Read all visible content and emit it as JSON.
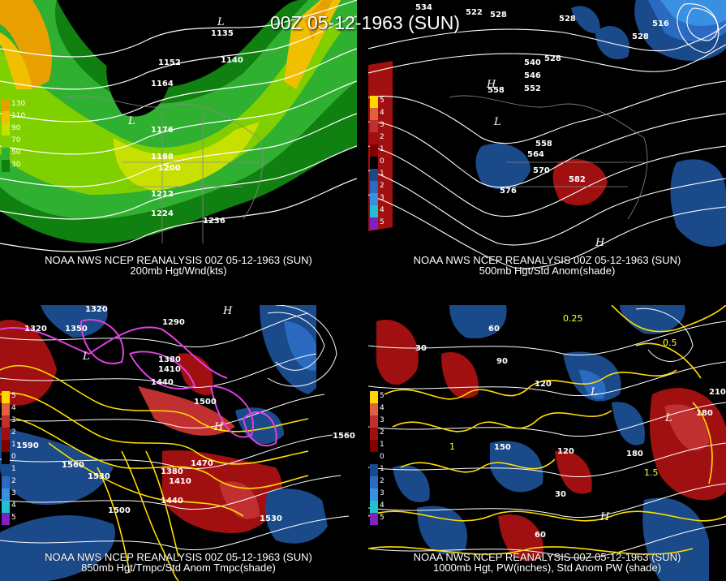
{
  "header": {
    "title": "00Z 05-12-1963 (SUN)"
  },
  "panels": [
    {
      "id": "p200",
      "line1": "NOAA NWS NCEP REANALYSIS 00Z 05-12-1963 (SUN)",
      "line2": "200mb Hgt/Wnd(kts)",
      "legend": [
        {
          "label": "130",
          "color": "#e8a000"
        },
        {
          "label": "110",
          "color": "#f0c000"
        },
        {
          "label": "90",
          "color": "#c8e000"
        },
        {
          "label": "70",
          "color": "#80d000"
        },
        {
          "label": "50",
          "color": "#30b030"
        },
        {
          "label": "30",
          "color": "#108010"
        }
      ],
      "labels": [
        "1135",
        "1152",
        "1140",
        "1164",
        "1176",
        "1188",
        "1200",
        "1212",
        "1224",
        "1236"
      ],
      "lows": [
        "L",
        "L"
      ]
    },
    {
      "id": "p500",
      "line1": "NOAA NWS NCEP REANALYSIS 00Z 05-12-1963 (SUN)",
      "line2": "500mb Hgt/Std Anom(shade)",
      "legend": [
        {
          "label": "5",
          "color": "#ffd700"
        },
        {
          "label": "4",
          "color": "#e06040"
        },
        {
          "label": "3",
          "color": "#c03030"
        },
        {
          "label": "2",
          "color": "#a01010"
        },
        {
          "label": "1",
          "color": "#800000"
        },
        {
          "label": "0",
          "color": "#000000"
        },
        {
          "label": "1",
          "color": "#1a4a8a"
        },
        {
          "label": "2",
          "color": "#2a6ac0"
        },
        {
          "label": "3",
          "color": "#3a90e0"
        },
        {
          "label": "4",
          "color": "#20c0d0"
        },
        {
          "label": "5",
          "color": "#8020c0"
        }
      ],
      "labels": [
        "534",
        "522",
        "528",
        "528",
        "516",
        "528",
        "540",
        "528",
        "546",
        "552",
        "558",
        "558",
        "564",
        "570",
        "576",
        "582"
      ],
      "lows": [
        "L",
        "H",
        "H"
      ]
    },
    {
      "id": "p850",
      "line1": "NOAA NWS NCEP REANALYSIS 00Z 05-12-1963 (SUN)",
      "line2": "850mb Hgt/Tmpc/Std Anom Tmpc(shade)",
      "legend": [
        {
          "label": "5",
          "color": "#ffd700"
        },
        {
          "label": "4",
          "color": "#e06040"
        },
        {
          "label": "3",
          "color": "#c03030"
        },
        {
          "label": "2",
          "color": "#a01010"
        },
        {
          "label": "1",
          "color": "#800000"
        },
        {
          "label": "0",
          "color": "#000000"
        },
        {
          "label": "1",
          "color": "#1a4a8a"
        },
        {
          "label": "2",
          "color": "#2a6ac0"
        },
        {
          "label": "3",
          "color": "#3a90e0"
        },
        {
          "label": "4",
          "color": "#20c0d0"
        },
        {
          "label": "5",
          "color": "#8020c0"
        }
      ],
      "labels": [
        "1320",
        "1350",
        "1290",
        "1380",
        "1410",
        "1440",
        "1500",
        "1590",
        "1560",
        "1530",
        "1500",
        "1380",
        "1410",
        "1440",
        "1470",
        "1560",
        "1530",
        "1320"
      ],
      "lows": [
        "L",
        "H",
        "H"
      ]
    },
    {
      "id": "p1000",
      "line1": "NOAA NWS NCEP REANALYSIS 00Z 05-12-1963 (SUN)",
      "line2": "1000mb Hgt, PW(inches), Std Anom PW (shade)",
      "legend": [
        {
          "label": "5",
          "color": "#ffd700"
        },
        {
          "label": "4",
          "color": "#e06040"
        },
        {
          "label": "3",
          "color": "#c03030"
        },
        {
          "label": "2",
          "color": "#a01010"
        },
        {
          "label": "1",
          "color": "#800000"
        },
        {
          "label": "0",
          "color": "#000000"
        },
        {
          "label": "1",
          "color": "#1a4a8a"
        },
        {
          "label": "2",
          "color": "#2a6ac0"
        },
        {
          "label": "3",
          "color": "#3a90e0"
        },
        {
          "label": "4",
          "color": "#20c0d0"
        },
        {
          "label": "5",
          "color": "#8020c0"
        }
      ],
      "labels": [
        "60",
        "30",
        "90",
        "120",
        "150",
        "180",
        "30",
        "60",
        "120",
        "0.25",
        "0.5",
        "1",
        "1.5",
        "210",
        "180"
      ],
      "lows": [
        "L",
        "H",
        "L"
      ]
    }
  ]
}
